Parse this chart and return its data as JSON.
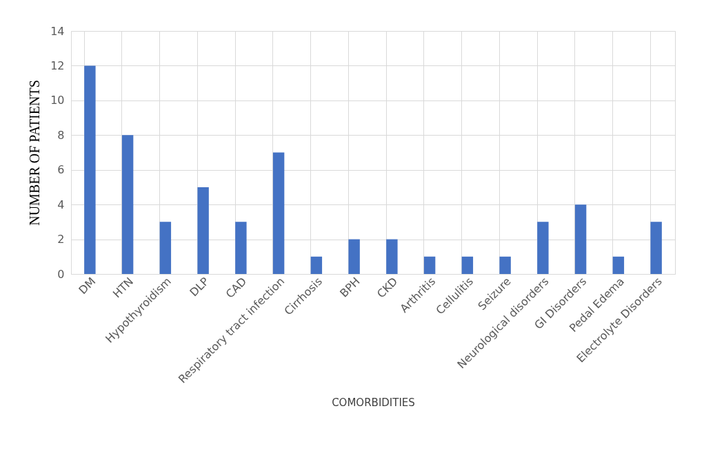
{
  "chart_data": {
    "type": "bar",
    "xlabel": "COMORBIDITIES",
    "ylabel": "NUMBER OF PATIENTS",
    "categories": [
      "DM",
      "HTN",
      "Hypothyroidism",
      "DLP",
      "CAD",
      "Respiratory tract infection",
      "Cirrhosis",
      "BPH",
      "CKD",
      "Arthritis",
      "Cellulitis",
      "Seizure",
      "Neurological disorders",
      "GI Disorders",
      "Pedal Edema",
      "Electrolyte Disorders"
    ],
    "values": [
      12,
      8,
      3,
      5,
      3,
      7,
      1,
      2,
      2,
      1,
      1,
      1,
      3,
      4,
      1,
      3
    ],
    "color": "#4472c4",
    "ylim": [
      0,
      14
    ],
    "yticks": [
      0,
      2,
      4,
      6,
      8,
      10,
      12,
      14
    ],
    "grid": true
  }
}
